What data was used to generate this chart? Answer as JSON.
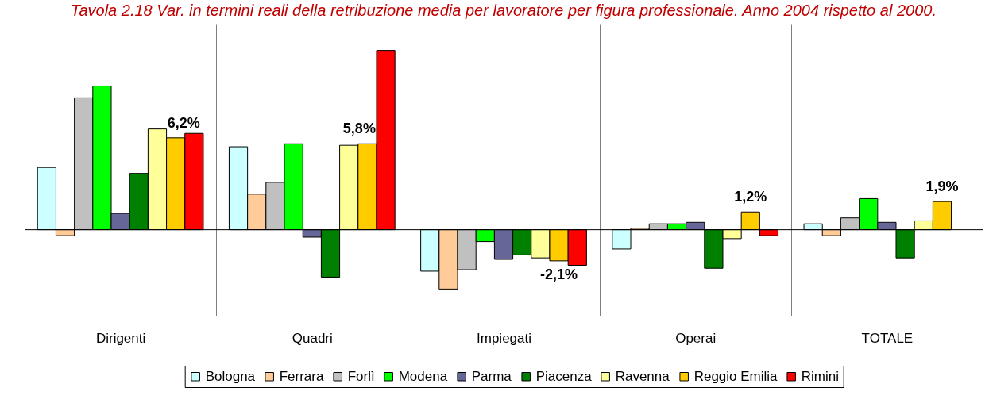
{
  "chart_data": {
    "type": "bar",
    "title": "Tavola 2.18 Var. in termini reali della retribuzione media per lavoratore per figura professionale. Anno 2004 rispetto al 2000.",
    "categories": [
      "Dirigenti",
      "Quadri",
      "Impiegati",
      "Operai",
      "TOTALE"
    ],
    "series": [
      {
        "name": "Bologna",
        "color": "#ccffff",
        "values": [
          4.2,
          5.6,
          -2.8,
          -1.3,
          0.4
        ]
      },
      {
        "name": "Ferrara",
        "color": "#ffcc99",
        "values": [
          -0.4,
          2.4,
          -4.0,
          0.1,
          -0.4
        ]
      },
      {
        "name": "Forlì",
        "color": "#c0c0c0",
        "values": [
          8.9,
          3.2,
          -2.7,
          0.4,
          0.8
        ]
      },
      {
        "name": "Modena",
        "color": "#00ff00",
        "values": [
          9.7,
          5.8,
          -0.8,
          0.4,
          2.1
        ]
      },
      {
        "name": "Parma",
        "color": "#666699",
        "values": [
          1.1,
          -0.5,
          -2.0,
          0.5,
          0.5
        ]
      },
      {
        "name": "Piacenza",
        "color": "#008000",
        "values": [
          3.8,
          -3.2,
          -1.7,
          -2.6,
          -1.9
        ]
      },
      {
        "name": "Ravenna",
        "color": "#ffff99",
        "values": [
          6.8,
          5.7,
          -1.9,
          -0.6,
          0.6
        ]
      },
      {
        "name": "Reggio Emilia",
        "color": "#ffcc00",
        "values": [
          6.2,
          5.8,
          -2.1,
          1.2,
          1.9
        ],
        "value_labels": [
          "6,2%",
          "5,8%",
          "-2,1%",
          "1,2%",
          "1,9%"
        ]
      },
      {
        "name": "Rimini",
        "color": "#ff0000",
        "values": [
          6.5,
          12.1,
          -2.4,
          -0.4,
          null
        ]
      }
    ],
    "ylim": [
      -5.8,
      13.9
    ],
    "tick_labels": "x",
    "grid": "x",
    "legend": "bottom"
  }
}
